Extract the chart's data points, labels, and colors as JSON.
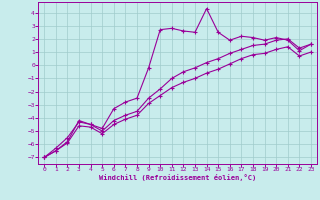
{
  "title": "",
  "xlabel": "Windchill (Refroidissement éolien,°C)",
  "bg_color": "#c8ecec",
  "line_color": "#990099",
  "grid_color": "#a0cccc",
  "xlim": [
    -0.5,
    23.5
  ],
  "ylim": [
    -7.5,
    4.8
  ],
  "xticks": [
    0,
    1,
    2,
    3,
    4,
    5,
    6,
    7,
    8,
    9,
    10,
    11,
    12,
    13,
    14,
    15,
    16,
    17,
    18,
    19,
    20,
    21,
    22,
    23
  ],
  "yticks": [
    -7,
    -6,
    -5,
    -4,
    -3,
    -2,
    -1,
    0,
    1,
    2,
    3,
    4
  ],
  "series": [
    {
      "x": [
        0,
        1,
        2,
        3,
        4,
        5,
        6,
        7,
        8,
        9,
        10,
        11,
        12,
        13,
        14,
        15,
        16,
        17,
        18,
        19,
        20,
        21,
        22,
        23
      ],
      "y": [
        -7.0,
        -6.5,
        -5.8,
        -4.2,
        -4.5,
        -4.8,
        -3.3,
        -2.8,
        -2.5,
        -0.2,
        2.7,
        2.8,
        2.6,
        2.5,
        4.3,
        2.5,
        1.9,
        2.2,
        2.1,
        1.9,
        2.1,
        1.9,
        1.1,
        1.6
      ]
    },
    {
      "x": [
        0,
        1,
        2,
        3,
        4,
        5,
        6,
        7,
        8,
        9,
        10,
        11,
        12,
        13,
        14,
        15,
        16,
        17,
        18,
        19,
        20,
        21,
        22,
        23
      ],
      "y": [
        -7.0,
        -6.3,
        -5.5,
        -4.3,
        -4.5,
        -5.0,
        -4.2,
        -3.8,
        -3.5,
        -2.5,
        -1.8,
        -1.0,
        -0.5,
        -0.2,
        0.2,
        0.5,
        0.9,
        1.2,
        1.5,
        1.6,
        1.9,
        2.0,
        1.3,
        1.6
      ]
    },
    {
      "x": [
        0,
        1,
        2,
        3,
        4,
        5,
        6,
        7,
        8,
        9,
        10,
        11,
        12,
        13,
        14,
        15,
        16,
        17,
        18,
        19,
        20,
        21,
        22,
        23
      ],
      "y": [
        -7.0,
        -6.5,
        -5.9,
        -4.6,
        -4.7,
        -5.2,
        -4.5,
        -4.1,
        -3.8,
        -2.9,
        -2.3,
        -1.7,
        -1.3,
        -1.0,
        -0.6,
        -0.3,
        0.1,
        0.5,
        0.8,
        0.9,
        1.2,
        1.4,
        0.7,
        1.0
      ]
    }
  ]
}
